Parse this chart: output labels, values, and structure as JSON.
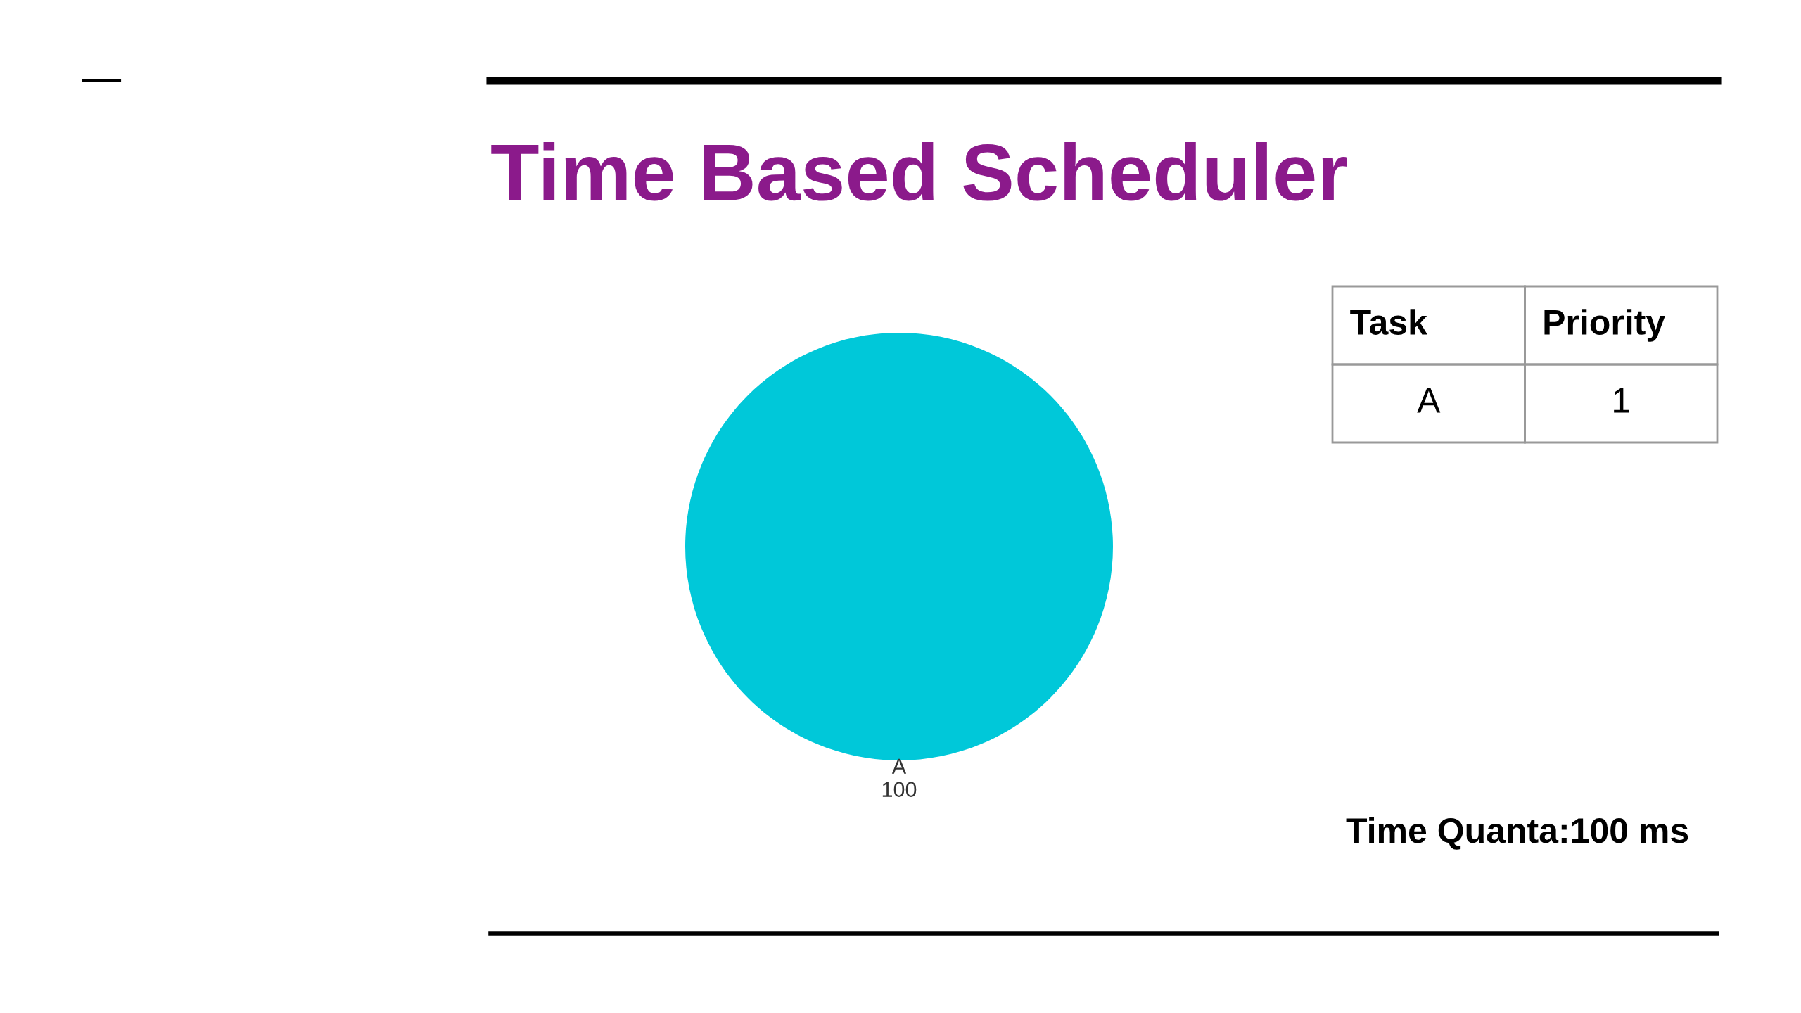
{
  "chart_data": [
    {
      "type": "pie",
      "title": "Time Based Scheduler",
      "categories": [
        "A"
      ],
      "values": [
        100
      ],
      "colors": [
        "#00c8d9"
      ],
      "data_labels": true,
      "annotations": [
        "Time Quanta:100 ms"
      ]
    },
    {
      "type": "other",
      "annotations": [
        "Task",
        "Priority",
        "A",
        "1"
      ]
    }
  ]
}
